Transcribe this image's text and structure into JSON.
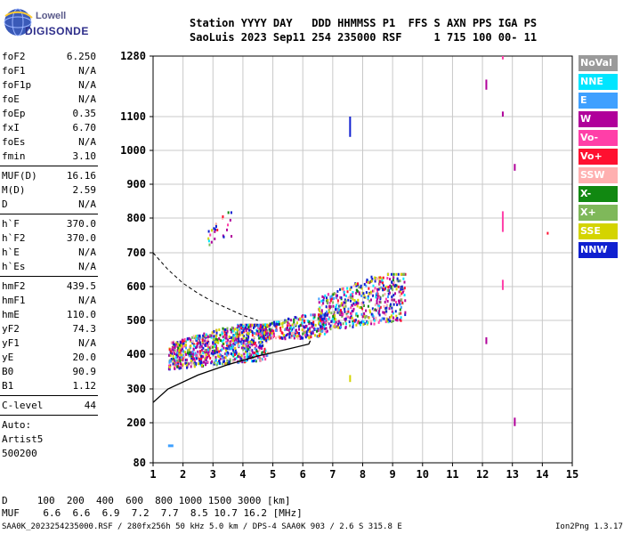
{
  "logo": {
    "line1": "Lowell",
    "line2": "DIGISONDE"
  },
  "header": {
    "line1": "Station YYYY DAY   DDD HHMMSS P1  FFS S AXN PPS IGA PS",
    "line2": "SaoLuis 2023 Sep11 254 235000 RSF     1 715 100 00- 11"
  },
  "params": {
    "group1": [
      {
        "label": "foF2",
        "value": "6.250"
      },
      {
        "label": "foF1",
        "value": "N/A"
      },
      {
        "label": "foF1p",
        "value": "N/A"
      },
      {
        "label": "foE",
        "value": "N/A"
      },
      {
        "label": "foEp",
        "value": "0.35"
      },
      {
        "label": "fxI",
        "value": "6.70"
      },
      {
        "label": "foEs",
        "value": "N/A"
      },
      {
        "label": "fmin",
        "value": "3.10"
      }
    ],
    "group2": [
      {
        "label": "MUF(D)",
        "value": "16.16"
      },
      {
        "label": "M(D)",
        "value": "2.59"
      },
      {
        "label": "D",
        "value": "N/A"
      }
    ],
    "group3": [
      {
        "label": "h`F",
        "value": "370.0"
      },
      {
        "label": "h`F2",
        "value": "370.0"
      },
      {
        "label": "h`E",
        "value": "N/A"
      },
      {
        "label": "h`Es",
        "value": "N/A"
      }
    ],
    "group4": [
      {
        "label": "hmF2",
        "value": "439.5"
      },
      {
        "label": "hmF1",
        "value": "N/A"
      },
      {
        "label": "hmE",
        "value": "110.0"
      },
      {
        "label": "yF2",
        "value": "74.3"
      },
      {
        "label": "yF1",
        "value": "N/A"
      },
      {
        "label": "yE",
        "value": "20.0"
      },
      {
        "label": "B0",
        "value": "90.9"
      },
      {
        "label": "B1",
        "value": "1.12"
      }
    ],
    "clevel": {
      "label": "C-level",
      "value": "44"
    },
    "auto": [
      "Auto:",
      "Artist5",
      "500200"
    ]
  },
  "legend": [
    {
      "label": "NoVal",
      "color": "#9a9a9a"
    },
    {
      "label": "NNE",
      "color": "#00e5ff"
    },
    {
      "label": "E",
      "color": "#3fa0ff"
    },
    {
      "label": "W",
      "color": "#b0009a"
    },
    {
      "label": "Vo-",
      "color": "#ff3fa8"
    },
    {
      "label": "Vo+",
      "color": "#ff1030"
    },
    {
      "label": "SSW",
      "color": "#ffb0b0"
    },
    {
      "label": "X-",
      "color": "#118811"
    },
    {
      "label": "X+",
      "color": "#7fb85a"
    },
    {
      "label": "SSE",
      "color": "#d4d400"
    },
    {
      "label": "NNW",
      "color": "#1020d0"
    }
  ],
  "bottom": {
    "d_line": "D     100  200  400  600  800 1000 1500 3000 [km]",
    "muf_line": "MUF    6.6  6.6  6.9  7.2  7.7  8.5 10.7 16.2 [MHz]",
    "footer": "SAA0K_2023254235000.RSF / 280fx256h 50 kHz 5.0 km / DPS-4 SAA0K 903 / 2.6 S 315.8 E",
    "version": "Ion2Png 1.3.17"
  },
  "chart_data": {
    "type": "scatter",
    "title": "",
    "xlabel": "",
    "ylabel": "",
    "xlim": [
      1,
      15
    ],
    "ylim": [
      80,
      1280
    ],
    "x_ticks": [
      1,
      2,
      3,
      4,
      5,
      6,
      7,
      8,
      9,
      10,
      11,
      12,
      13,
      14,
      15
    ],
    "y_ticks": [
      80,
      200,
      300,
      400,
      500,
      600,
      700,
      800,
      900,
      1000,
      1100,
      1280
    ],
    "grid": true,
    "traces": [
      {
        "name": "dense-cloud",
        "x_range": [
          1.5,
          4.8
        ],
        "y_range": [
          360,
          490
        ],
        "points": 900
      },
      {
        "name": "mid-cloud",
        "x_range": [
          4.5,
          6.8
        ],
        "y_range": [
          440,
          520
        ],
        "points": 300
      },
      {
        "name": "upper-cloud",
        "x_range": [
          6.5,
          9.4
        ],
        "y_range": [
          470,
          640
        ],
        "points": 550
      },
      {
        "name": "scatter-upper",
        "x_range": [
          2.8,
          3.6
        ],
        "y_range": [
          720,
          820
        ],
        "points": 25
      }
    ],
    "spikes": [
      {
        "x": 7.55,
        "y": [
          1040,
          1100
        ]
      },
      {
        "x": 7.55,
        "y": [
          320,
          340
        ]
      },
      {
        "x": 12.1,
        "y": [
          1180,
          1210
        ]
      },
      {
        "x": 12.1,
        "y": [
          430,
          450
        ]
      },
      {
        "x": 12.65,
        "y": [
          760,
          820
        ]
      },
      {
        "x": 12.65,
        "y": [
          590,
          620
        ]
      },
      {
        "x": 12.65,
        "y": [
          1100,
          1115
        ]
      },
      {
        "x": 12.65,
        "y": [
          1270,
          1280
        ]
      },
      {
        "x": 13.05,
        "y": [
          940,
          960
        ]
      },
      {
        "x": 13.05,
        "y": [
          190,
          215
        ]
      },
      {
        "x": 14.15,
        "y": [
          755,
          760
        ]
      },
      {
        "x": 1.5,
        "y": [
          135,
          135
        ]
      }
    ],
    "profile_curve": {
      "x": [
        1.0,
        1.5,
        2.5,
        3.5,
        4.5,
        5.5,
        6.2,
        6.25
      ],
      "y": [
        260,
        300,
        340,
        370,
        395,
        415,
        430,
        440
      ]
    },
    "muf_curve": {
      "x": [
        1.0,
        1.5,
        2.0,
        2.5,
        3.0,
        3.5,
        4.0,
        4.5
      ],
      "y": [
        700,
        650,
        610,
        580,
        555,
        535,
        515,
        500
      ]
    }
  }
}
